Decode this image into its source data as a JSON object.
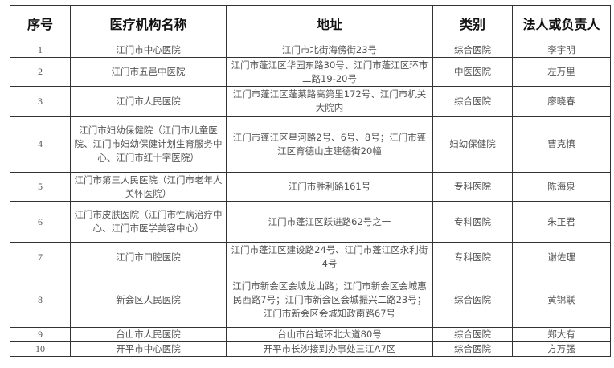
{
  "table": {
    "headers": [
      "序号",
      "医疗机构名称",
      "地址",
      "类别",
      "法人或负责人"
    ],
    "rows": [
      {
        "no": "1",
        "name": "江门市中心医院",
        "address": "江门市北街海傍街23号",
        "category": "综合医院",
        "person": "李宇明"
      },
      {
        "no": "2",
        "name": "江门市五邑中医院",
        "address": "江门市蓬江区华园东路30号、江门市蓬江区环市二路19-20号",
        "category": "中医医院",
        "person": "左万里"
      },
      {
        "no": "3",
        "name": "江门市人民医院",
        "address": "江门市蓬江区蓬莱路高第里172号、江门市机关大院内",
        "category": "综合医院",
        "person": "廖晓春"
      },
      {
        "no": "4",
        "name": "江门市妇幼保健院（江门市儿童医院、江门市妇幼保健计划生育服务中心、江门市红十字医院）",
        "address": "江门市蓬江区星河路2号、6号、8号；江门市蓬江区育德山庄建德街20幢",
        "category": "妇幼保健院",
        "person": "曹克慎"
      },
      {
        "no": "5",
        "name": "江门市第三人民医院（江门市老年人关怀医院）",
        "address": "江门市胜利路161号",
        "category": "专科医院",
        "person": "陈海泉"
      },
      {
        "no": "6",
        "name": "江门市皮肤医院（江门市性病治疗中心、江门市医学美容中心）",
        "address": "江门市蓬江区跃进路62号之一",
        "category": "专科医院",
        "person": "朱正君"
      },
      {
        "no": "7",
        "name": "江门市口腔医院",
        "address": "江门市蓬江区建设路24号、江门市蓬江区永利街4号",
        "category": "专科医院",
        "person": "谢佐理"
      },
      {
        "no": "8",
        "name": "新会区人民医院",
        "address": "江门市新会区会城龙山路；江门市新会区会城惠民西路7号；江门市新会区会城振兴二路23号；江门市新会区会城知政南路67号",
        "category": "综合医院",
        "person": "黄锦联"
      },
      {
        "no": "9",
        "name": "台山市人民医院",
        "address": "台山市台城环北大道80号",
        "category": "综合医院",
        "person": "郑大有"
      },
      {
        "no": "10",
        "name": "开平市中心医院",
        "address": "开平市长沙接到办事处三江A7区",
        "category": "综合医院",
        "person": "方万强"
      }
    ]
  }
}
